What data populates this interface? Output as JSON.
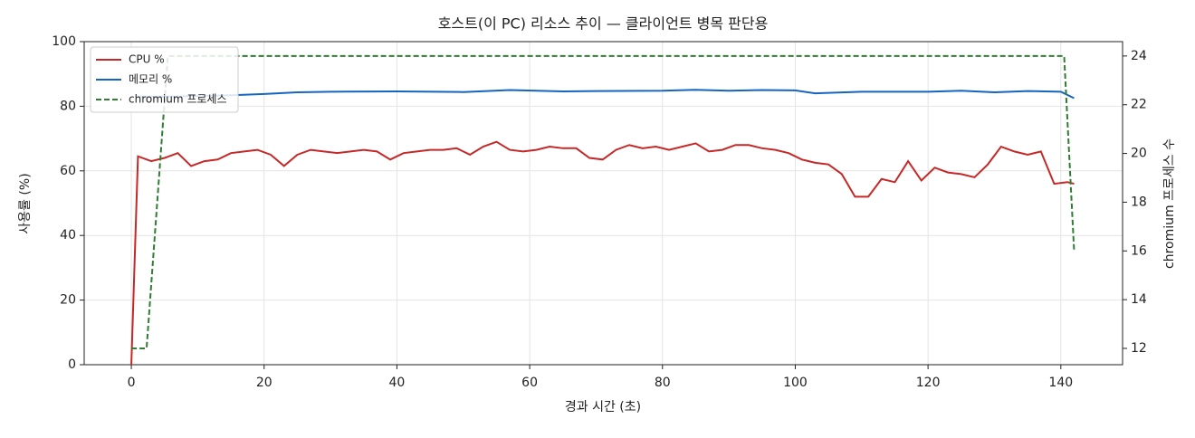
{
  "chart_data": {
    "type": "line",
    "title": "호스트(이 PC) 리소스 추이 — 클라이언트 병목 판단용",
    "x_label": "경과 시간 (초)",
    "y_label": "사용률 (%)",
    "y2_label": "chromium 프로세스 수",
    "xlim": [
      -7.1,
      149.3
    ],
    "xticks": [
      0,
      20,
      40,
      60,
      80,
      100,
      120,
      140
    ],
    "ylim": [
      0,
      100
    ],
    "yticks": [
      0,
      20,
      40,
      60,
      80,
      100
    ],
    "y2lim": [
      11.33,
      24.59
    ],
    "y2ticks": [
      12,
      14,
      16,
      18,
      20,
      22,
      24
    ],
    "grid": true,
    "legend": "upper left",
    "series": [
      {
        "name": "CPU %",
        "color": "#c62828",
        "linestyle": "solid",
        "x": [
          0,
          1,
          3,
          5,
          7,
          9,
          11,
          13,
          15,
          17,
          19,
          21,
          23,
          25,
          27,
          29,
          31,
          33,
          35,
          37,
          39,
          41,
          43,
          45,
          47,
          49,
          51,
          53,
          55,
          57,
          59,
          61,
          63,
          65,
          67,
          69,
          71,
          73,
          75,
          77,
          79,
          81,
          83,
          85,
          87,
          89,
          91,
          93,
          95,
          97,
          99,
          101,
          103,
          105,
          107,
          109,
          111,
          113,
          115,
          117,
          119,
          121,
          123,
          125,
          127,
          129,
          131,
          133,
          135,
          137,
          139,
          141,
          142
        ],
        "values": [
          0,
          64.5,
          63,
          64,
          65.5,
          61.5,
          63,
          63.5,
          65.5,
          66,
          66.5,
          65,
          61.5,
          65,
          66.5,
          66,
          65.5,
          66,
          66.5,
          66,
          63.5,
          65.5,
          66,
          66.5,
          66.5,
          67,
          65,
          67.5,
          69,
          66.5,
          66,
          66.5,
          67.5,
          67,
          67,
          64,
          63.5,
          66.5,
          68,
          67,
          67.5,
          66.5,
          67.5,
          68.5,
          66,
          66.5,
          68,
          68,
          67,
          66.5,
          65.5,
          63.5,
          62.5,
          62,
          59,
          52,
          52,
          57.5,
          56.5,
          63,
          57,
          61,
          59.5,
          59,
          58,
          62,
          67.5,
          66,
          65,
          66,
          56,
          56.5,
          56
        ]
      },
      {
        "name": "메모리 %",
        "color": "#1565c0",
        "linestyle": "solid",
        "x": [
          1,
          5,
          10,
          15,
          20,
          25,
          30,
          40,
          50,
          57,
          65,
          70,
          80,
          85,
          90,
          95,
          100,
          103,
          110,
          120,
          125,
          130,
          135,
          140,
          142
        ],
        "values": [
          83,
          83,
          83.2,
          83.4,
          83.8,
          84.3,
          84.5,
          84.6,
          84.4,
          85,
          84.6,
          84.7,
          84.8,
          85.1,
          84.8,
          85,
          84.9,
          84,
          84.5,
          84.5,
          84.8,
          84.3,
          84.7,
          84.5,
          82.5
        ]
      },
      {
        "name": "chromium 프로세스",
        "color": "#2e7d32",
        "linestyle": "dashed",
        "axis": "y2",
        "x": [
          0,
          2.3,
          5.5,
          140.5,
          142
        ],
        "values": [
          12,
          12,
          24,
          24,
          16
        ]
      }
    ]
  }
}
